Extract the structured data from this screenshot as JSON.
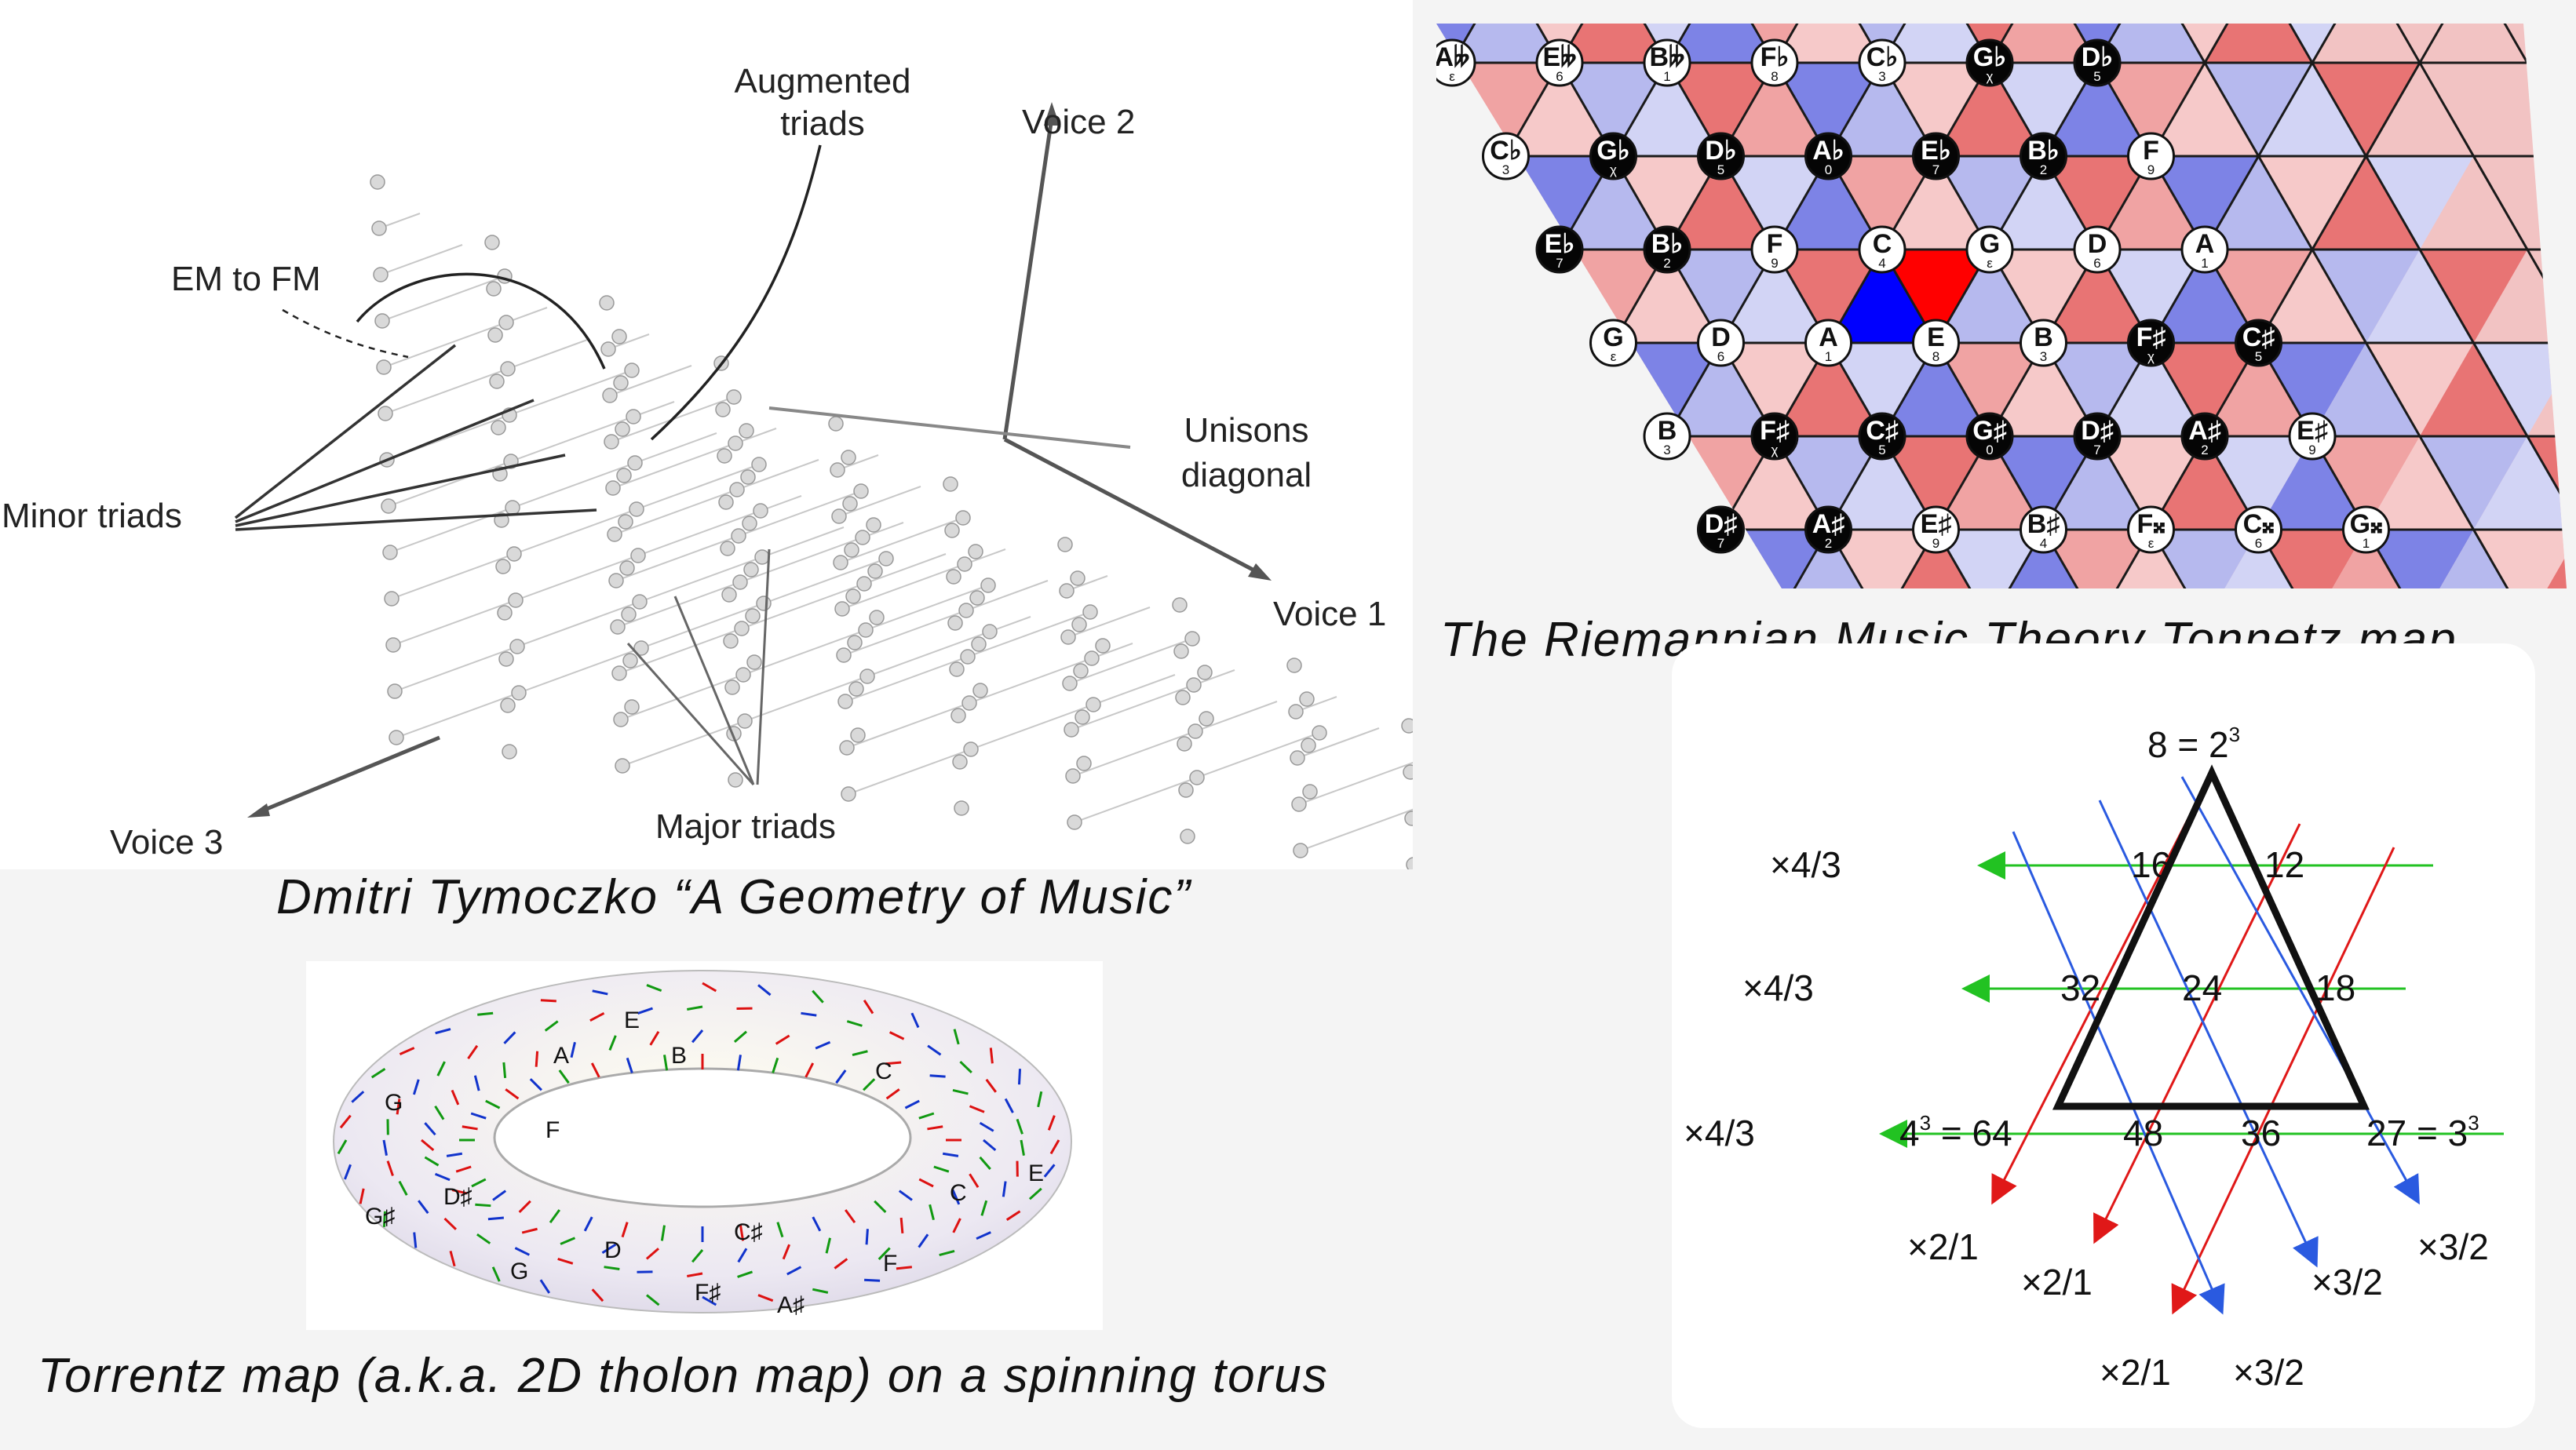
{
  "tymoczko": {
    "labels": {
      "augmented": [
        "Augmented",
        "triads"
      ],
      "voice2": "Voice 2",
      "em_to_fm": "EM to FM",
      "unisons": [
        "Unisons",
        "diagonal"
      ],
      "minor": "Minor triads",
      "voice1": "Voice 1",
      "voice3": "Voice 3",
      "major": "Major triads"
    },
    "caption": "Dmitri Tymoczko “A Geometry of Music”"
  },
  "tonnetz": {
    "caption": "The Riemannian Music Theory Tonnetz map",
    "rows": [
      [
        {
          "n": "A𝄫",
          "s": "ε",
          "d": false
        },
        {
          "n": "E𝄫",
          "s": "6",
          "d": false
        },
        {
          "n": "B𝄫",
          "s": "1",
          "d": false
        },
        {
          "n": "F♭",
          "s": "8",
          "d": false
        },
        {
          "n": "C♭",
          "s": "3",
          "d": false
        },
        {
          "n": "G♭",
          "s": "χ",
          "d": true
        },
        {
          "n": "D♭",
          "s": "5",
          "d": true
        }
      ],
      [
        {
          "n": "C♭",
          "s": "3",
          "d": false
        },
        {
          "n": "G♭",
          "s": "χ",
          "d": true
        },
        {
          "n": "D♭",
          "s": "5",
          "d": true
        },
        {
          "n": "A♭",
          "s": "0",
          "d": true
        },
        {
          "n": "E♭",
          "s": "7",
          "d": true
        },
        {
          "n": "B♭",
          "s": "2",
          "d": true
        },
        {
          "n": "F",
          "s": "9",
          "d": false
        }
      ],
      [
        {
          "n": "E♭",
          "s": "7",
          "d": true
        },
        {
          "n": "B♭",
          "s": "2",
          "d": true
        },
        {
          "n": "F",
          "s": "9",
          "d": false
        },
        {
          "n": "C",
          "s": "4",
          "d": false
        },
        {
          "n": "G",
          "s": "ε",
          "d": false
        },
        {
          "n": "D",
          "s": "6",
          "d": false
        },
        {
          "n": "A",
          "s": "1",
          "d": false
        }
      ],
      [
        {
          "n": "G",
          "s": "ε",
          "d": false
        },
        {
          "n": "D",
          "s": "6",
          "d": false
        },
        {
          "n": "A",
          "s": "1",
          "d": false
        },
        {
          "n": "E",
          "s": "8",
          "d": false
        },
        {
          "n": "B",
          "s": "3",
          "d": false
        },
        {
          "n": "F♯",
          "s": "χ",
          "d": true
        },
        {
          "n": "C♯",
          "s": "5",
          "d": true
        }
      ],
      [
        {
          "n": "B",
          "s": "3",
          "d": false
        },
        {
          "n": "F♯",
          "s": "χ",
          "d": true
        },
        {
          "n": "C♯",
          "s": "5",
          "d": true
        },
        {
          "n": "G♯",
          "s": "0",
          "d": true
        },
        {
          "n": "D♯",
          "s": "7",
          "d": true
        },
        {
          "n": "A♯",
          "s": "2",
          "d": true
        },
        {
          "n": "E♯",
          "s": "9",
          "d": false
        }
      ],
      [
        {
          "n": "D♯",
          "s": "7",
          "d": true
        },
        {
          "n": "A♯",
          "s": "2",
          "d": true
        },
        {
          "n": "E♯",
          "s": "9",
          "d": false
        },
        {
          "n": "B♯",
          "s": "4",
          "d": false
        },
        {
          "n": "F𝄪",
          "s": "ε",
          "d": false
        },
        {
          "n": "C𝄪",
          "s": "6",
          "d": false
        },
        {
          "n": "G𝄪",
          "s": "1",
          "d": false
        }
      ]
    ],
    "colors": {
      "red": "#ff0000",
      "blue": "#0000ff",
      "pink": "#f4a6a6",
      "lightblue": "#b5b9ee"
    }
  },
  "torus": {
    "caption": "Torrentz map (a.k.a. 2D tholon map) on a spinning torus",
    "labels": [
      "D",
      "G",
      "F♯",
      "C♯",
      "F",
      "C",
      "D♯",
      "G♯",
      "A♯",
      "B",
      "E",
      "A",
      "F",
      "C",
      "G",
      "E"
    ]
  },
  "triangle": {
    "apex": "8 = 2",
    "apex_exp": "3",
    "left_mult": [
      "×4/3",
      "×4/3",
      "×4/3"
    ],
    "row1": [
      "16",
      "12"
    ],
    "row2": [
      "32",
      "24",
      "18"
    ],
    "row3_left": "4",
    "row3_left_exp": "3",
    "row3_left_rest": " = 64",
    "row3_mid": [
      "48",
      "36"
    ],
    "row3_right": "27 = 3",
    "row3_right_exp": "3",
    "bottom": [
      "×2/1",
      "×2/1",
      "×3/2",
      "×3/2",
      "×2/1",
      "×3/2"
    ]
  }
}
